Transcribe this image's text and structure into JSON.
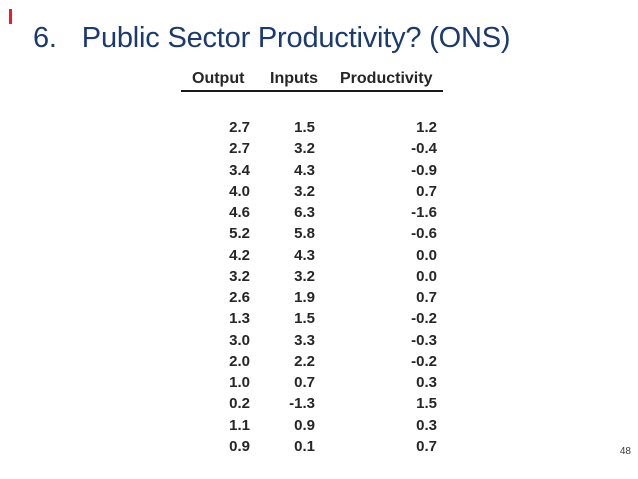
{
  "slide": {
    "title": {
      "number": "6.",
      "text": "Public Sector Productivity? (ONS)"
    },
    "title_color": "#1a3a70",
    "red_mark_color": "#ee1c25",
    "page_number": "48"
  },
  "table": {
    "columns": [
      "Output",
      "Inputs",
      "Productivity"
    ],
    "rows": [
      [
        "2.7",
        "1.5",
        "1.2"
      ],
      [
        "2.7",
        "3.2",
        "-0.4"
      ],
      [
        "3.4",
        "4.3",
        "-0.9"
      ],
      [
        "4.0",
        "3.2",
        "0.7"
      ],
      [
        "4.6",
        "6.3",
        "-1.6"
      ],
      [
        "5.2",
        "5.8",
        "-0.6"
      ],
      [
        "4.2",
        "4.3",
        "0.0"
      ],
      [
        "3.2",
        "3.2",
        "0.0"
      ],
      [
        "2.6",
        "1.9",
        "0.7"
      ],
      [
        "1.3",
        "1.5",
        "-0.2"
      ],
      [
        "3.0",
        "3.3",
        "-0.3"
      ],
      [
        "2.0",
        "2.2",
        "-0.2"
      ],
      [
        "1.0",
        "0.7",
        "0.3"
      ],
      [
        "0.2",
        "-1.3",
        "1.5"
      ],
      [
        "1.1",
        "0.9",
        "0.3"
      ],
      [
        "0.9",
        "0.1",
        "0.7"
      ]
    ]
  },
  "chart_data": {
    "type": "table",
    "title": "6.  Public Sector Productivity? (ONS)",
    "categories": [
      "Output",
      "Inputs",
      "Productivity"
    ],
    "series": [
      {
        "name": "Output",
        "values": [
          2.7,
          2.7,
          3.4,
          4.0,
          4.6,
          5.2,
          4.2,
          3.2,
          2.6,
          1.3,
          3.0,
          2.0,
          1.0,
          0.2,
          1.1,
          0.9
        ]
      },
      {
        "name": "Inputs",
        "values": [
          1.5,
          3.2,
          4.3,
          3.2,
          6.3,
          5.8,
          4.3,
          3.2,
          1.9,
          1.5,
          3.3,
          2.2,
          0.7,
          -1.3,
          0.9,
          0.1
        ]
      },
      {
        "name": "Productivity",
        "values": [
          1.2,
          -0.4,
          -0.9,
          0.7,
          -1.6,
          -0.6,
          0.0,
          0.0,
          0.7,
          -0.2,
          -0.3,
          -0.2,
          0.3,
          1.5,
          0.3,
          0.7
        ]
      }
    ]
  }
}
